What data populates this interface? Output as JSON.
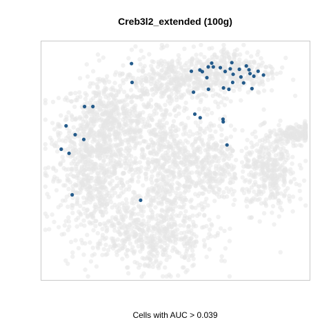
{
  "chart_data": {
    "type": "scatter",
    "title": "Creb3l2_extended (100g)",
    "xlabel": "Cells with AUC > 0.039",
    "ylabel": "",
    "axes_visible": false,
    "grid": false,
    "background_color": "#e6e6e6",
    "highlight_color": "#0d4a80",
    "background_cells": {
      "point_count_estimate": 4000,
      "clusters": [
        {
          "name": "left-upper",
          "cx": 0.25,
          "cy": 0.65,
          "sx": 0.09,
          "sy": 0.09,
          "n": 620
        },
        {
          "name": "left-lower",
          "cx": 0.2,
          "cy": 0.42,
          "sx": 0.08,
          "sy": 0.12,
          "n": 600
        },
        {
          "name": "top-center",
          "cx": 0.5,
          "cy": 0.84,
          "sx": 0.11,
          "sy": 0.05,
          "n": 420
        },
        {
          "name": "top-right",
          "cx": 0.72,
          "cy": 0.88,
          "sx": 0.08,
          "sy": 0.05,
          "n": 260
        },
        {
          "name": "center",
          "cx": 0.45,
          "cy": 0.48,
          "sx": 0.05,
          "sy": 0.14,
          "n": 420
        },
        {
          "name": "center-right",
          "cx": 0.62,
          "cy": 0.5,
          "sx": 0.06,
          "sy": 0.1,
          "n": 380
        },
        {
          "name": "right",
          "cx": 0.85,
          "cy": 0.45,
          "sx": 0.05,
          "sy": 0.08,
          "n": 360
        },
        {
          "name": "far-right",
          "cx": 0.95,
          "cy": 0.61,
          "sx": 0.04,
          "sy": 0.02,
          "n": 160
        },
        {
          "name": "bottom",
          "cx": 0.42,
          "cy": 0.18,
          "sx": 0.11,
          "sy": 0.07,
          "n": 480
        }
      ]
    },
    "highlighted_cells": [
      {
        "x": 0.336,
        "y": 0.907
      },
      {
        "x": 0.338,
        "y": 0.828
      },
      {
        "x": 0.161,
        "y": 0.727
      },
      {
        "x": 0.192,
        "y": 0.727
      },
      {
        "x": 0.092,
        "y": 0.646
      },
      {
        "x": 0.126,
        "y": 0.609
      },
      {
        "x": 0.158,
        "y": 0.589
      },
      {
        "x": 0.074,
        "y": 0.548
      },
      {
        "x": 0.103,
        "y": 0.531
      },
      {
        "x": 0.115,
        "y": 0.357
      },
      {
        "x": 0.37,
        "y": 0.334
      },
      {
        "x": 0.559,
        "y": 0.875
      },
      {
        "x": 0.591,
        "y": 0.88
      },
      {
        "x": 0.6,
        "y": 0.873
      },
      {
        "x": 0.622,
        "y": 0.893
      },
      {
        "x": 0.635,
        "y": 0.909
      },
      {
        "x": 0.641,
        "y": 0.893
      },
      {
        "x": 0.617,
        "y": 0.848
      },
      {
        "x": 0.567,
        "y": 0.787
      },
      {
        "x": 0.623,
        "y": 0.799
      },
      {
        "x": 0.667,
        "y": 0.89
      },
      {
        "x": 0.685,
        "y": 0.874
      },
      {
        "x": 0.704,
        "y": 0.885
      },
      {
        "x": 0.715,
        "y": 0.862
      },
      {
        "x": 0.713,
        "y": 0.828
      },
      {
        "x": 0.679,
        "y": 0.805
      },
      {
        "x": 0.699,
        "y": 0.799
      },
      {
        "x": 0.71,
        "y": 0.911
      },
      {
        "x": 0.738,
        "y": 0.883
      },
      {
        "x": 0.744,
        "y": 0.851
      },
      {
        "x": 0.764,
        "y": 0.897
      },
      {
        "x": 0.774,
        "y": 0.881
      },
      {
        "x": 0.778,
        "y": 0.865
      },
      {
        "x": 0.792,
        "y": 0.854
      },
      {
        "x": 0.754,
        "y": 0.826
      },
      {
        "x": 0.785,
        "y": 0.802
      },
      {
        "x": 0.808,
        "y": 0.875
      },
      {
        "x": 0.828,
        "y": 0.859
      },
      {
        "x": 0.572,
        "y": 0.695
      },
      {
        "x": 0.592,
        "y": 0.68
      },
      {
        "x": 0.677,
        "y": 0.674
      },
      {
        "x": 0.678,
        "y": 0.663
      },
      {
        "x": 0.692,
        "y": 0.566
      }
    ]
  }
}
